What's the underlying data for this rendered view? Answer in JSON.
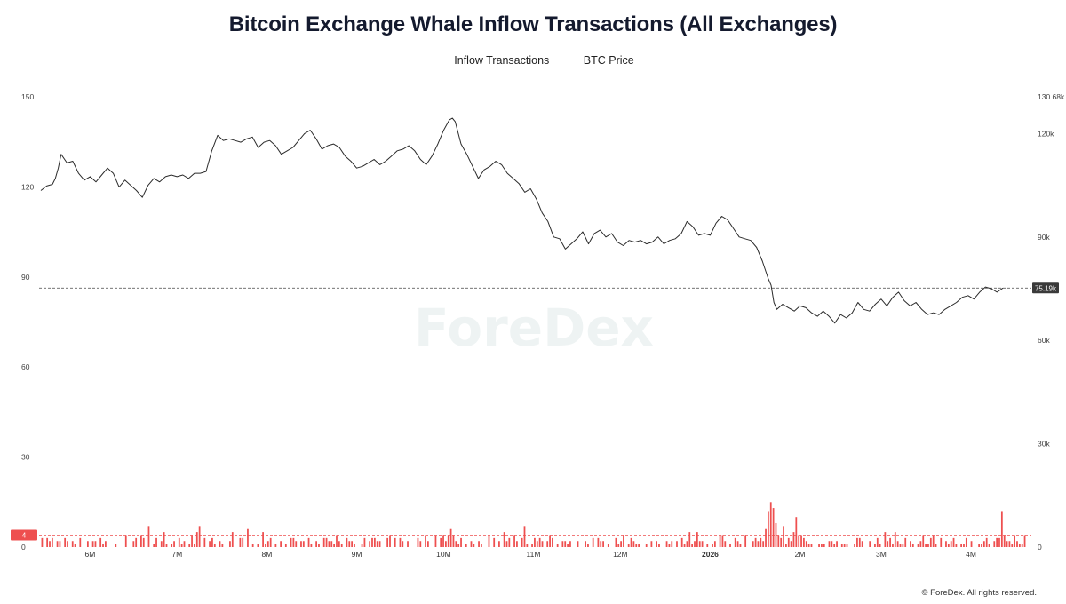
{
  "colors": {
    "inflow": "#ee4f4f",
    "price": "#2b2b2b",
    "ref": "#444444"
  },
  "watermark": "ForeDex",
  "copyright": "© ForeDex. All rights reserved.",
  "chart_data": {
    "type": "line",
    "title": "Bitcoin Exchange Whale Inflow Transactions (All Exchanges)",
    "legend": [
      {
        "name": "Inflow Transactions",
        "color": "#ee4f4f"
      },
      {
        "name": "BTC Price",
        "color": "#2b2b2b"
      }
    ],
    "legend_position": "top-center",
    "x_ticks": [
      {
        "label": "6M",
        "day": 17
      },
      {
        "label": "7M",
        "day": 47
      },
      {
        "label": "8M",
        "day": 78
      },
      {
        "label": "9M",
        "day": 109
      },
      {
        "label": "10M",
        "day": 139
      },
      {
        "label": "11M",
        "day": 170
      },
      {
        "label": "12M",
        "day": 200
      },
      {
        "label": "2026",
        "day": 231,
        "bold": true
      },
      {
        "label": "2M",
        "day": 262
      },
      {
        "label": "3M",
        "day": 290
      },
      {
        "label": "4M",
        "day": 321
      }
    ],
    "x_range_days": [
      0,
      340
    ],
    "left_axis": {
      "name": "Inflow Transactions",
      "range": [
        0,
        150
      ],
      "ticks": [
        0,
        30,
        60,
        90,
        120,
        150
      ]
    },
    "right_axis": {
      "name": "BTC Price",
      "range": [
        0,
        130680
      ],
      "ticks": [
        "30k",
        "60k",
        "90k",
        "120k",
        "130.68k"
      ],
      "tick_values": [
        30000,
        60000,
        90000,
        120000,
        130680
      ]
    },
    "price_marker": {
      "label": "75.19k",
      "value": 75190
    },
    "inflow_marker": {
      "label": "4",
      "value": 4
    },
    "btc_price_k": [
      [
        0,
        103.5
      ],
      [
        2,
        104.8
      ],
      [
        4,
        105.3
      ],
      [
        5,
        107
      ],
      [
        6,
        110
      ],
      [
        7,
        114
      ],
      [
        9,
        111.5
      ],
      [
        11,
        112
      ],
      [
        13,
        108.5
      ],
      [
        15,
        106.5
      ],
      [
        17,
        107.5
      ],
      [
        19,
        106
      ],
      [
        21,
        108
      ],
      [
        23,
        110
      ],
      [
        25,
        108.5
      ],
      [
        27,
        104.5
      ],
      [
        29,
        106.5
      ],
      [
        31,
        105
      ],
      [
        33,
        103.5
      ],
      [
        35,
        101.5
      ],
      [
        37,
        105
      ],
      [
        39,
        107
      ],
      [
        41,
        106
      ],
      [
        43,
        107.5
      ],
      [
        45,
        108
      ],
      [
        47,
        107.5
      ],
      [
        49,
        108
      ],
      [
        51,
        107
      ],
      [
        53,
        108.5
      ],
      [
        55,
        108.5
      ],
      [
        57,
        109
      ],
      [
        59,
        115
      ],
      [
        61,
        119.5
      ],
      [
        63,
        118
      ],
      [
        65,
        118.5
      ],
      [
        67,
        118
      ],
      [
        69,
        117.5
      ],
      [
        71,
        118.5
      ],
      [
        73,
        119
      ],
      [
        75,
        116
      ],
      [
        77,
        117.5
      ],
      [
        79,
        118
      ],
      [
        81,
        116.5
      ],
      [
        83,
        114
      ],
      [
        85,
        115
      ],
      [
        87,
        116
      ],
      [
        89,
        118
      ],
      [
        91,
        120
      ],
      [
        93,
        121
      ],
      [
        95,
        118.5
      ],
      [
        97,
        115.5
      ],
      [
        99,
        116.5
      ],
      [
        101,
        117
      ],
      [
        103,
        116
      ],
      [
        105,
        113.5
      ],
      [
        107,
        112
      ],
      [
        109,
        110
      ],
      [
        111,
        110.5
      ],
      [
        113,
        111.5
      ],
      [
        115,
        112.5
      ],
      [
        117,
        111
      ],
      [
        119,
        112
      ],
      [
        121,
        113.5
      ],
      [
        123,
        115
      ],
      [
        125,
        115.5
      ],
      [
        127,
        116.5
      ],
      [
        129,
        115
      ],
      [
        131,
        112.5
      ],
      [
        133,
        111
      ],
      [
        135,
        113.5
      ],
      [
        137,
        117
      ],
      [
        139,
        121
      ],
      [
        141,
        124
      ],
      [
        142,
        124.5
      ],
      [
        143,
        123.5
      ],
      [
        145,
        117
      ],
      [
        147,
        114
      ],
      [
        149,
        110.5
      ],
      [
        151,
        107
      ],
      [
        153,
        109.5
      ],
      [
        155,
        110.5
      ],
      [
        157,
        112
      ],
      [
        159,
        111
      ],
      [
        161,
        108.5
      ],
      [
        163,
        107
      ],
      [
        165,
        105.5
      ],
      [
        167,
        103
      ],
      [
        169,
        104
      ],
      [
        171,
        101
      ],
      [
        173,
        97
      ],
      [
        175,
        94.5
      ],
      [
        177,
        90
      ],
      [
        179,
        89.5
      ],
      [
        181,
        86.5
      ],
      [
        183,
        88
      ],
      [
        185,
        89.5
      ],
      [
        187,
        91.5
      ],
      [
        189,
        88
      ],
      [
        191,
        91
      ],
      [
        193,
        92
      ],
      [
        195,
        90
      ],
      [
        197,
        91
      ],
      [
        199,
        88.5
      ],
      [
        201,
        87.5
      ],
      [
        203,
        89
      ],
      [
        205,
        88.5
      ],
      [
        207,
        89
      ],
      [
        209,
        88
      ],
      [
        211,
        88.5
      ],
      [
        213,
        90
      ],
      [
        215,
        88
      ],
      [
        217,
        89
      ],
      [
        219,
        89.5
      ],
      [
        221,
        91
      ],
      [
        223,
        94.5
      ],
      [
        225,
        93
      ],
      [
        227,
        90.5
      ],
      [
        229,
        91
      ],
      [
        231,
        90.5
      ],
      [
        233,
        94
      ],
      [
        235,
        96
      ],
      [
        237,
        95
      ],
      [
        239,
        92.5
      ],
      [
        241,
        90
      ],
      [
        243,
        89.5
      ],
      [
        245,
        89
      ],
      [
        247,
        87
      ],
      [
        249,
        83
      ],
      [
        251,
        78
      ],
      [
        252,
        76
      ],
      [
        253,
        71
      ],
      [
        254,
        69
      ],
      [
        256,
        70.5
      ],
      [
        258,
        69.5
      ],
      [
        260,
        68.5
      ],
      [
        262,
        70
      ],
      [
        264,
        69.5
      ],
      [
        266,
        68
      ],
      [
        268,
        67
      ],
      [
        270,
        68.5
      ],
      [
        272,
        67
      ],
      [
        274,
        65
      ],
      [
        276,
        67.5
      ],
      [
        278,
        66.5
      ],
      [
        280,
        68
      ],
      [
        282,
        71
      ],
      [
        284,
        69
      ],
      [
        286,
        68.5
      ],
      [
        288,
        70.5
      ],
      [
        290,
        72
      ],
      [
        292,
        70
      ],
      [
        294,
        72.5
      ],
      [
        296,
        74
      ],
      [
        298,
        71.5
      ],
      [
        300,
        70
      ],
      [
        302,
        71
      ],
      [
        304,
        69
      ],
      [
        306,
        67.5
      ],
      [
        308,
        68
      ],
      [
        310,
        67.5
      ],
      [
        312,
        69
      ],
      [
        314,
        70
      ],
      [
        316,
        71
      ],
      [
        318,
        72.5
      ],
      [
        320,
        73
      ],
      [
        322,
        72
      ],
      [
        324,
        74
      ],
      [
        326,
        75.5
      ],
      [
        328,
        75
      ],
      [
        330,
        74
      ],
      [
        332,
        75.19
      ]
    ],
    "inflow_tx": [
      3,
      0,
      3,
      2,
      3,
      0,
      2,
      2,
      0,
      3,
      2,
      0,
      2,
      1,
      0,
      3,
      0,
      0,
      2,
      0,
      2,
      2,
      0,
      3,
      1,
      2,
      0,
      0,
      0,
      1,
      0,
      0,
      0,
      4,
      0,
      0,
      2,
      3,
      0,
      4,
      3,
      0,
      7,
      0,
      1,
      3,
      0,
      2,
      5,
      1,
      0,
      1,
      2,
      0,
      3,
      1,
      2,
      0,
      1,
      4,
      1,
      5,
      7,
      0,
      3,
      0,
      2,
      3,
      1,
      0,
      2,
      1,
      0,
      0,
      2,
      5,
      0,
      0,
      3,
      3,
      0,
      6,
      0,
      1,
      0,
      1,
      0,
      5,
      1,
      2,
      3,
      0,
      1,
      0,
      2,
      0,
      1,
      0,
      3,
      3,
      2,
      0,
      2,
      2,
      0,
      3,
      1,
      0,
      2,
      1,
      0,
      3,
      3,
      2,
      2,
      1,
      4,
      2,
      1,
      0,
      3,
      2,
      2,
      1,
      0,
      0,
      1,
      3,
      0,
      2,
      3,
      3,
      2,
      2,
      0,
      0,
      3,
      4,
      0,
      3,
      0,
      3,
      2,
      0,
      2,
      0,
      0,
      0,
      3,
      2,
      0,
      4,
      2,
      0,
      0,
      4,
      0,
      3,
      4,
      2,
      4,
      6,
      4,
      2,
      1,
      3,
      0,
      1,
      0,
      2,
      1,
      0,
      2,
      1,
      0,
      0,
      4,
      0,
      3,
      0,
      2,
      0,
      5,
      2,
      3,
      0,
      4,
      2,
      0,
      3,
      7,
      1,
      0,
      1,
      3,
      2,
      3,
      2,
      0,
      2,
      4,
      3,
      0,
      1,
      0,
      2,
      2,
      1,
      2,
      0,
      0,
      2,
      0,
      0,
      2,
      1,
      0,
      3,
      0,
      3,
      2,
      2,
      0,
      1,
      0,
      0,
      3,
      1,
      2,
      4,
      0,
      1,
      3,
      2,
      1,
      1,
      0,
      0,
      1,
      0,
      2,
      0,
      2,
      1,
      0,
      0,
      2,
      1,
      2,
      0,
      2,
      0,
      3,
      1,
      2,
      5,
      1,
      2,
      5,
      2,
      2,
      0,
      1,
      0,
      1,
      2,
      0,
      4,
      4,
      2,
      0,
      1,
      0,
      3,
      2,
      1,
      0,
      4,
      0,
      0,
      2,
      3,
      2,
      3,
      2,
      6,
      12,
      15,
      13,
      8,
      4,
      3,
      7,
      1,
      3,
      2,
      5,
      10,
      4,
      4,
      3,
      2,
      1,
      1,
      0,
      0,
      1,
      1,
      1,
      0,
      2,
      2,
      1,
      2,
      0,
      1,
      1,
      1,
      0,
      0,
      1,
      3,
      3,
      2,
      0,
      0,
      2,
      0,
      1,
      3,
      1,
      0,
      5,
      2,
      3,
      1,
      5,
      2,
      1,
      1,
      3,
      0,
      2,
      1,
      0,
      1,
      2,
      4,
      1,
      1,
      3,
      4,
      1,
      0,
      3,
      0,
      2,
      1,
      2,
      3,
      1,
      0,
      1,
      1,
      3,
      0,
      2,
      0,
      0,
      1,
      1,
      2,
      3,
      1,
      0,
      2,
      3,
      3,
      12,
      4,
      2,
      2,
      1,
      4,
      2,
      1,
      1,
      4
    ],
    "watermark": "ForeDex"
  }
}
